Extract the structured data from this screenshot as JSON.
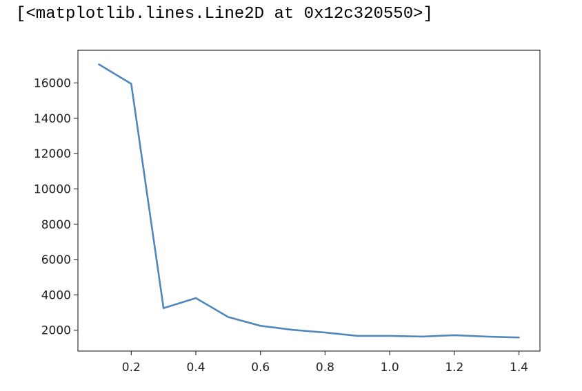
{
  "output": {
    "repr_text": "[<matplotlib.lines.Line2D at 0x12c320550>]"
  },
  "chart_data": {
    "type": "line",
    "title": "",
    "xlabel": "",
    "ylabel": "",
    "x": [
      0.1,
      0.2,
      0.3,
      0.4,
      0.5,
      0.6,
      0.7,
      0.8,
      0.9,
      1.0,
      1.1,
      1.2,
      1.3,
      1.4
    ],
    "series": [
      {
        "values": [
          17050,
          15950,
          3250,
          3820,
          2750,
          2250,
          2020,
          1870,
          1680,
          1680,
          1640,
          1720,
          1640,
          1590
        ],
        "color": "#4f87bd"
      }
    ],
    "xlim": [
      0.035,
      1.465
    ],
    "ylim": [
      820,
      17850
    ],
    "xticks": [
      0.2,
      0.4,
      0.6,
      0.8,
      1.0,
      1.2,
      1.4
    ],
    "xtick_labels": [
      "0.2",
      "0.4",
      "0.6",
      "0.8",
      "1.0",
      "1.2",
      "1.4"
    ],
    "yticks": [
      2000,
      4000,
      6000,
      8000,
      10000,
      12000,
      14000,
      16000
    ],
    "ytick_labels": [
      "2000",
      "4000",
      "6000",
      "8000",
      "10000",
      "12000",
      "14000",
      "16000"
    ],
    "grid": false,
    "legend": "none"
  }
}
